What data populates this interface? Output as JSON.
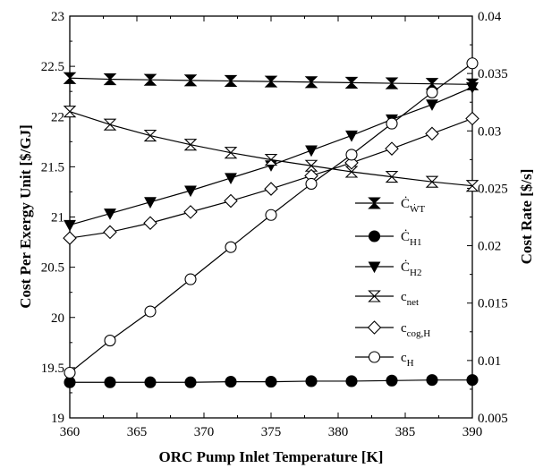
{
  "chart_data": {
    "type": "line",
    "xlabel": "ORC Pump Inlet Temperature [K]",
    "ylabel_left": "Cost Per Exergy Unit [$/GJ]",
    "ylabel_right": "Cost Rate [$/s]",
    "xlim": [
      360,
      390
    ],
    "ylim_left": [
      19,
      23
    ],
    "ylim_right": [
      0.005,
      0.04
    ],
    "x_ticks": [
      "360",
      "365",
      "370",
      "375",
      "380",
      "385",
      "390"
    ],
    "y_left_ticks": [
      "19",
      "19.5",
      "20",
      "20.5",
      "21",
      "21.5",
      "22",
      "22.5",
      "23"
    ],
    "y_right_ticks": [
      "0.005",
      "0.01",
      "0.015",
      "0.02",
      "0.025",
      "0.03",
      "0.035",
      "0.04"
    ],
    "grid": false,
    "legend_position": "lower-right",
    "series": [
      {
        "name": "Ċ_WT",
        "label_main": "Ċ",
        "label_sub": "ẆT",
        "marker": "bowtie",
        "axis": "right",
        "x": [
          360,
          363,
          366,
          369,
          372,
          375,
          378,
          381,
          384,
          387,
          390
        ],
        "y": [
          0.0346,
          0.0345,
          0.03445,
          0.0344,
          0.03435,
          0.0343,
          0.03425,
          0.0342,
          0.03415,
          0.0341,
          0.03405
        ]
      },
      {
        "name": "Ċ_H1",
        "label_main": "Ċ",
        "label_sub": "H1",
        "marker": "filled-circle",
        "axis": "right",
        "x": [
          360,
          363,
          366,
          369,
          372,
          375,
          378,
          381,
          384,
          387,
          390
        ],
        "y": [
          0.0081,
          0.0081,
          0.0081,
          0.0081,
          0.00815,
          0.00815,
          0.0082,
          0.0082,
          0.00825,
          0.0083,
          0.0083
        ]
      },
      {
        "name": "Ċ_H2",
        "label_main": "Ċ",
        "label_sub": "H2",
        "marker": "filled-triangle-down",
        "axis": "right",
        "x": [
          360,
          363,
          366,
          369,
          372,
          375,
          378,
          381,
          384,
          387,
          390
        ],
        "y": [
          0.0218,
          0.0228,
          0.0238,
          0.0248,
          0.0259,
          0.027,
          0.0283,
          0.0296,
          0.031,
          0.0323,
          0.0338
        ]
      },
      {
        "name": "c_net",
        "label_main": "c",
        "label_sub": "net",
        "marker": "open-bowtie",
        "axis": "left",
        "x": [
          360,
          363,
          366,
          369,
          372,
          375,
          378,
          381,
          384,
          387,
          390
        ],
        "y": [
          22.05,
          21.92,
          21.81,
          21.72,
          21.64,
          21.57,
          21.51,
          21.45,
          21.4,
          21.35,
          21.31
        ]
      },
      {
        "name": "c_cog,H",
        "label_main": "c",
        "label_sub": "cog,H",
        "marker": "open-diamond",
        "axis": "left",
        "x": [
          360,
          363,
          366,
          369,
          372,
          375,
          378,
          381,
          384,
          387,
          390
        ],
        "y": [
          20.79,
          20.85,
          20.94,
          21.05,
          21.16,
          21.28,
          21.41,
          21.54,
          21.68,
          21.83,
          21.98
        ]
      },
      {
        "name": "c_H",
        "label_main": "c",
        "label_sub": "H",
        "marker": "open-circle",
        "axis": "left",
        "x": [
          360,
          363,
          366,
          369,
          372,
          375,
          378,
          381,
          384,
          387,
          390
        ],
        "y": [
          19.45,
          19.77,
          20.06,
          20.38,
          20.7,
          21.02,
          21.33,
          21.62,
          21.93,
          22.24,
          22.53
        ]
      }
    ]
  }
}
